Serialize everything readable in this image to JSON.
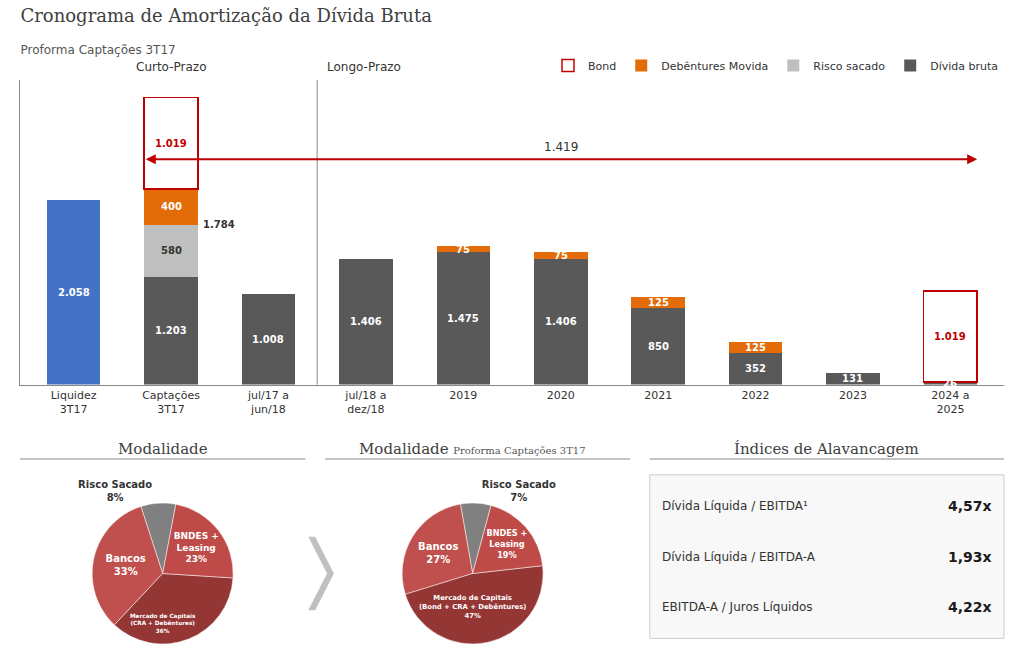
{
  "chart_data": [
    {
      "type": "bar",
      "title": "Cronograma de Amortização da Dívida Bruta",
      "subtitle": "Proforma Captações 3T17",
      "categories": [
        "Liquidez\n3T17",
        "Captações\n3T17",
        "jul/17 a\njun/18",
        "jul/18 a\ndez/18",
        "2019",
        "2020",
        "2021",
        "2022",
        "2023",
        "2024 a\n2025"
      ],
      "stacked": true,
      "data_labels": true,
      "legend": "upper right",
      "grid": false,
      "tick_labels": "x",
      "ylim": [
        0,
        3400
      ],
      "yticks": [],
      "series": [
        {
          "color": "#4472C4",
          "values": [
            2058,
            0,
            0,
            0,
            0,
            0,
            0,
            0,
            0,
            0
          ],
          "value_labels": [
            "2.058",
            null,
            null,
            null,
            null,
            null,
            null,
            null,
            null,
            null
          ]
        },
        {
          "name": "Dívida bruta",
          "color": "#595959",
          "values": [
            0,
            1203,
            1008,
            1406,
            1475,
            1406,
            850,
            352,
            131,
            26
          ],
          "value_labels": [
            null,
            "1.203",
            "1.008",
            "1.406",
            "1.475",
            "1.406",
            "850",
            "352",
            "131",
            "26"
          ]
        },
        {
          "name": "Risco sacado",
          "color": "#BFBFBF",
          "values": [
            0,
            580,
            0,
            0,
            0,
            0,
            0,
            0,
            0,
            0
          ],
          "value_labels": [
            null,
            "580",
            null,
            null,
            null,
            null,
            null,
            null,
            null,
            null
          ]
        },
        {
          "name": "Debêntures Movida",
          "color": "#E36C09",
          "values": [
            0,
            400,
            0,
            0,
            75,
            75,
            125,
            125,
            0,
            0
          ],
          "value_labels": [
            null,
            "400",
            null,
            null,
            "75",
            "75",
            "125",
            "125",
            null,
            null
          ]
        },
        {
          "name": "Bond",
          "color": "#C00000",
          "marker": "outline",
          "values": [
            0,
            1019,
            0,
            0,
            0,
            0,
            0,
            0,
            0,
            1019
          ],
          "value_labels": [
            null,
            "1.019",
            null,
            null,
            null,
            null,
            null,
            null,
            null,
            "1.019"
          ]
        }
      ],
      "annotations": [
        {
          "text": "Curto-Prazo"
        },
        {
          "text": "Longo-Prazo"
        },
        {
          "text": "1.784",
          "x": 1
        },
        {
          "text": "1.419"
        }
      ]
    },
    {
      "type": "pie",
      "title": "Modalidade",
      "legend": false,
      "categories": [
        "Risco Sacado",
        "Bancos",
        "Mercado de Capitais\n(CRA + Debêntures)",
        "BNDES +\nLeasing"
      ],
      "values": [
        8,
        33,
        36,
        23
      ],
      "value_labels": [
        "8%",
        "33%",
        "36%",
        "23%"
      ],
      "colors": [
        "#808080",
        "#C0504D",
        "#943634",
        "#BE4B48"
      ]
    },
    {
      "type": "pie",
      "title": "Modalidade",
      "subtitle": "Proforma Captações 3T17",
      "legend": false,
      "categories": [
        "Risco Sacado",
        "Bancos",
        "Mercado de Capitais\n(Bond + CRA + Debêntures)",
        "BNDES +\nLeasing"
      ],
      "values": [
        7,
        27,
        47,
        19
      ],
      "value_labels": [
        "7%",
        "27%",
        "47%",
        "19%"
      ],
      "colors": [
        "#808080",
        "#C0504D",
        "#943634",
        "#BE4B48"
      ]
    },
    {
      "type": "table",
      "title": "Índices de Alavancagem",
      "rows": [
        [
          "Dívida Líquida / EBITDA¹",
          "4,57x"
        ],
        [
          "Dívida Líquida / EBITDA-A",
          "1,93x"
        ],
        [
          "EBITDA-A / Juros Líquidos",
          "4,22x"
        ]
      ]
    }
  ]
}
